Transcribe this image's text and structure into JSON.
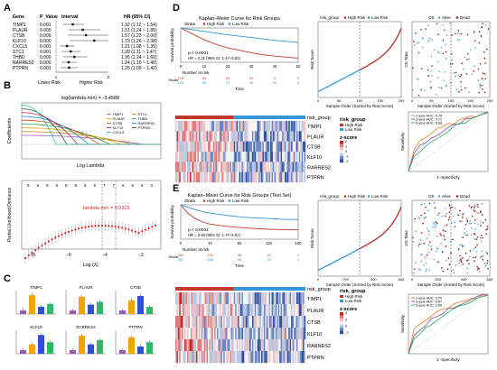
{
  "panel_labels": [
    "A",
    "B",
    "C",
    "D",
    "E"
  ],
  "panelA": {
    "headers": [
      "Gene",
      "P_Value",
      "Interval",
      "HR (95% CI)"
    ],
    "rows": [
      {
        "gene": "TIMP1",
        "p": "0.001",
        "hr": 1.32,
        "lo": 1.12,
        "hi": 1.54,
        "ci": "1.32 (1.12 ~ 1.54)"
      },
      {
        "gene": "PLAUR",
        "p": "0.000",
        "hr": 1.51,
        "lo": 1.24,
        "hi": 1.85,
        "ci": "1.51 (1.24 ~ 1.85)"
      },
      {
        "gene": "CTSB",
        "p": "0.000",
        "hr": 1.57,
        "lo": 1.23,
        "hi": 2.0,
        "ci": "1.57 (1.23 ~ 2.00)"
      },
      {
        "gene": "KLF10",
        "p": "0.000",
        "hr": 1.73,
        "lo": 1.26,
        "hi": 2.38,
        "ci": "1.73 (1.26 ~ 2.38)"
      },
      {
        "gene": "CXCL5",
        "p": "0.001",
        "hr": 1.21,
        "lo": 1.08,
        "hi": 1.35,
        "ci": "1.21 (1.08 ~ 1.35)"
      },
      {
        "gene": "STC1",
        "p": "0.001",
        "hr": 1.28,
        "lo": 1.11,
        "hi": 1.47,
        "ci": "1.28 (1.11 ~ 1.47)"
      },
      {
        "gene": "THBD",
        "p": "0.000",
        "hr": 1.35,
        "lo": 1.14,
        "hi": 1.6,
        "ci": "1.35 (1.14 ~ 1.60)"
      },
      {
        "gene": "RARRES2",
        "p": "0.000",
        "hr": 1.24,
        "lo": 1.1,
        "hi": 1.4,
        "ci": "1.24 (1.10 ~ 1.40)"
      },
      {
        "gene": "PTPRN",
        "p": "0.001",
        "hr": 1.25,
        "lo": 1.09,
        "hi": 1.42,
        "ci": "1.25 (1.09 ~ 1.42)"
      }
    ],
    "axis_min_label": "1",
    "axis_max_label": "2",
    "axis_min": 1,
    "axis_max": 2,
    "left_label": "Lower Risk",
    "right_label": "Higher Risk"
  },
  "panelB": {
    "title": "log(lambda.min) = -3.4588",
    "coef_ylabel": "Coefficients",
    "coef_xlabel": "Log Lambda",
    "legend": [
      {
        "name": "TIMP1",
        "color": "#9b59b6"
      },
      {
        "name": "STC1",
        "color": "#b8860b"
      },
      {
        "name": "PLAUR",
        "color": "#e6a700"
      },
      {
        "name": "THBD",
        "color": "#2f9e44"
      },
      {
        "name": "CTSB",
        "color": "#d9480f"
      },
      {
        "name": "RARRES2",
        "color": "#1c7ed6"
      },
      {
        "name": "KLF10",
        "color": "#c2255c"
      },
      {
        "name": "PTPRN",
        "color": "#495057"
      },
      {
        "name": "CXCL5",
        "color": "#20c997"
      }
    ],
    "cv_ylabel": "Partial Likelihood Deviance",
    "cv_xlabel": "Log (λ)",
    "cv_annotation": "lambda.min = 0.0315",
    "cv_xticks": [
      "−8",
      "−6",
      "−4",
      "−2"
    ],
    "cv_top_numbers": [
      "9",
      "9",
      "9",
      "9",
      "8",
      "8",
      "8",
      "8",
      "7",
      "7",
      "6",
      "6",
      "5",
      "3"
    ]
  },
  "panelC": {
    "genes": [
      "TIMP1",
      "PLAUR",
      "CTSB",
      "KLF10",
      "RARRES2",
      "PTPRN"
    ],
    "values": [
      [
        0.5,
        2.6,
        1.0,
        1.4
      ],
      [
        0.5,
        2.4,
        1.3,
        1.7
      ],
      [
        0.5,
        1.9,
        2.5,
        1.0
      ],
      [
        0.5,
        1.3,
        2.6,
        1.6
      ],
      [
        0.5,
        2.5,
        1.3,
        1.9
      ],
      [
        0.5,
        2.3,
        1.0,
        1.6
      ]
    ],
    "bar_colors": [
      "#9b59b6",
      "#f0a500",
      "#2f4fd6",
      "#2fb86b"
    ]
  },
  "panelD": {
    "km": {
      "title": "Kaplan–Meier Curve for Risk Groups",
      "legend_label": "Strata",
      "high_label": "High Risk",
      "low_label": "Low Risk",
      "ylabel": "Survival probability",
      "xlabel": "Time",
      "pvalue": "p < 0.0001",
      "hr": "HR = 2.31 (95% CI: 1.47~3.62)",
      "risk_table_title": "Number at risk",
      "x_ticks": [
        "0",
        "10",
        "20",
        "30",
        "40",
        "50"
      ],
      "high_curve": [
        [
          0,
          1.0
        ],
        [
          4,
          0.86
        ],
        [
          8,
          0.72
        ],
        [
          12,
          0.6
        ],
        [
          16,
          0.5
        ],
        [
          20,
          0.42
        ],
        [
          25,
          0.35
        ],
        [
          30,
          0.28
        ],
        [
          35,
          0.22
        ],
        [
          40,
          0.18
        ],
        [
          45,
          0.15
        ],
        [
          50,
          0.12
        ]
      ],
      "low_curve": [
        [
          0,
          1.0
        ],
        [
          4,
          0.96
        ],
        [
          8,
          0.92
        ],
        [
          12,
          0.88
        ],
        [
          16,
          0.84
        ],
        [
          20,
          0.8
        ],
        [
          25,
          0.76
        ],
        [
          30,
          0.72
        ],
        [
          35,
          0.68
        ],
        [
          40,
          0.64
        ],
        [
          45,
          0.61
        ],
        [
          50,
          0.58
        ]
      ],
      "risk_numbers_high": [
        "115",
        "69",
        "42",
        "22",
        "9",
        "2"
      ],
      "risk_numbers_low": [
        "115",
        "99",
        "75",
        "48",
        "24",
        "6"
      ]
    },
    "risk_plot": {
      "legend_title": "risk_group",
      "high_label": "High Risk",
      "low_label": "Low Risk",
      "ylabel": "Risk Score",
      "xlabel": "Sample Order (Sorted by Risk Score)",
      "x_ticks": [
        "0",
        "50",
        "100",
        "150",
        "200"
      ]
    },
    "os_plot": {
      "title": "OS",
      "alive_label": "Alive",
      "dead_label": "Dead",
      "ylabel": "OS Time",
      "xlabel": "Sample Order (Sorted by Risk Score)",
      "x_ticks": [
        "0",
        "50",
        "100",
        "150",
        "200"
      ]
    },
    "heatmap": {
      "top_label": "risk_group",
      "genes": [
        "TIMP1",
        "PLAUR",
        "CTSB",
        "KLF10",
        "RARRES2",
        "PTPRN"
      ],
      "legend_title": "risk_group",
      "legend_items": [
        "High Risk",
        "Low Risk"
      ],
      "zscore_title": "z-score",
      "zscore_ticks": [
        "2",
        "1",
        "0",
        "-1",
        "-2"
      ]
    },
    "roc": {
      "legend": [
        "1-year AUC: 0.75",
        "3-year AUC: 0.71",
        "5-year AUC: 0.68"
      ],
      "ylabel": "Sensitivity",
      "xlabel": "1−Specificity"
    }
  },
  "panelE": {
    "km": {
      "title": "Kaplan–Meier Curve for Risk Groups (Test Set)",
      "legend_label": "Strata",
      "high_label": "High Risk",
      "low_label": "Low Risk",
      "ylabel": "Survival probability",
      "xlabel": "Time",
      "pvalue": "p < 0.0001",
      "hr": "HR = 2.60 (95% CI: 1.77~3.81)",
      "risk_table_title": "Number at risk",
      "x_ticks": [
        "0",
        "40",
        "80",
        "120",
        "160"
      ],
      "high_curve": [
        [
          0,
          1.0
        ],
        [
          10,
          0.75
        ],
        [
          20,
          0.6
        ],
        [
          30,
          0.5
        ],
        [
          40,
          0.44
        ],
        [
          60,
          0.38
        ],
        [
          80,
          0.34
        ],
        [
          100,
          0.31
        ],
        [
          120,
          0.29
        ],
        [
          140,
          0.28
        ],
        [
          160,
          0.27
        ]
      ],
      "low_curve": [
        [
          0,
          1.0
        ],
        [
          10,
          0.93
        ],
        [
          20,
          0.86
        ],
        [
          30,
          0.8
        ],
        [
          40,
          0.76
        ],
        [
          60,
          0.7
        ],
        [
          80,
          0.65
        ],
        [
          100,
          0.62
        ],
        [
          120,
          0.6
        ],
        [
          140,
          0.58
        ],
        [
          160,
          0.57
        ]
      ],
      "risk_numbers_high": [
        "300",
        "115",
        "46",
        "12",
        "1"
      ],
      "risk_numbers_low": [
        "300",
        "186",
        "96",
        "33",
        "2"
      ]
    },
    "risk_plot": {
      "legend_title": "risk_group",
      "high_label": "High Risk",
      "low_label": "Low Risk",
      "ylabel": "Risk Score",
      "xlabel": "Sample Order (Sorted by Risk Score)",
      "x_ticks": [
        "0",
        "200",
        "400",
        "600"
      ]
    },
    "os_plot": {
      "title": "OS",
      "alive_label": "Alive",
      "dead_label": "Dead",
      "ylabel": "OS Time",
      "xlabel": "Sample Order (Sorted by Risk Score)",
      "x_ticks": [
        "0",
        "200",
        "400",
        "600"
      ]
    },
    "heatmap": {
      "top_label": "risk_group",
      "genes": [
        "TIMP1",
        "PLAUR",
        "CTSB",
        "KLF10",
        "RARRES2",
        "PTPRN"
      ],
      "legend_title": "risk_group",
      "legend_items": [
        "High Risk",
        "Low Risk"
      ],
      "zscore_title": "z-score",
      "zscore_ticks": [
        "4",
        "2",
        "0",
        "-2"
      ]
    },
    "roc": {
      "legend": [
        "1-year AUC: 0.70",
        "3-year AUC: 0.67",
        "5-year AUC: 0.66"
      ],
      "ylabel": "Sensitivity",
      "xlabel": "1−Specificity"
    }
  },
  "colors": {
    "high": "#c0392b",
    "low": "#3498db",
    "alive": "#5dade2",
    "dead": "#922b21",
    "roc": [
      "#e67e22",
      "#8e44ad",
      "#27ae60"
    ]
  }
}
